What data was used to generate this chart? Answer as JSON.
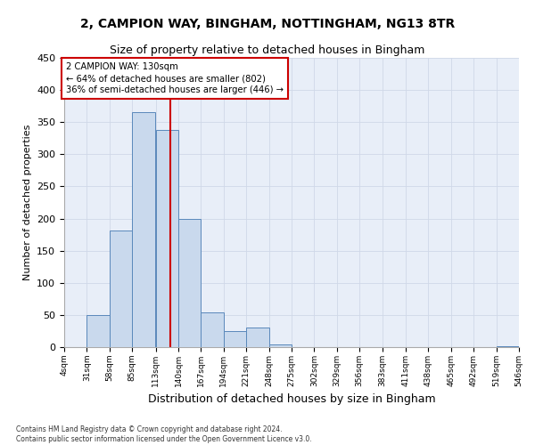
{
  "title": "2, CAMPION WAY, BINGHAM, NOTTINGHAM, NG13 8TR",
  "subtitle": "Size of property relative to detached houses in Bingham",
  "xlabel": "Distribution of detached houses by size in Bingham",
  "ylabel": "Number of detached properties",
  "bin_edges": [
    4,
    31,
    58,
    85,
    113,
    140,
    167,
    194,
    221,
    248,
    275,
    302,
    329,
    356,
    383,
    411,
    438,
    465,
    492,
    519,
    546
  ],
  "bar_heights": [
    0,
    50,
    181,
    365,
    338,
    199,
    54,
    25,
    31,
    4,
    0,
    0,
    0,
    0,
    0,
    0,
    0,
    0,
    0,
    1
  ],
  "bar_color": "#c9d9ed",
  "bar_edge_color": "#5a88bb",
  "grid_color": "#d0d8e8",
  "vline_x": 130,
  "vline_color": "#cc0000",
  "annotation_text": "2 CAMPION WAY: 130sqm\n← 64% of detached houses are smaller (802)\n36% of semi-detached houses are larger (446) →",
  "annotation_box_color": "#cc0000",
  "ylim": [
    0,
    450
  ],
  "yticks": [
    0,
    50,
    100,
    150,
    200,
    250,
    300,
    350,
    400,
    450
  ],
  "footnote": "Contains HM Land Registry data © Crown copyright and database right 2024.\nContains public sector information licensed under the Open Government Licence v3.0.",
  "background_color": "#e8eef8",
  "title_fontsize": 10,
  "subtitle_fontsize": 9,
  "ylabel_fontsize": 8,
  "xlabel_fontsize": 9
}
